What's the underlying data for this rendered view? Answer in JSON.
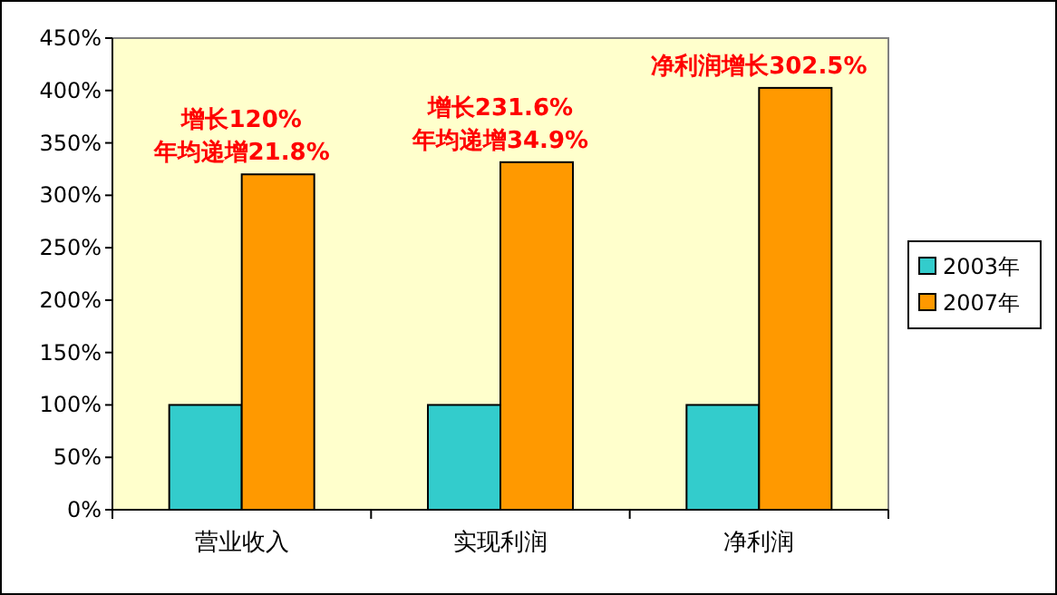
{
  "chart_data": {
    "type": "bar",
    "categories": [
      "营业收入",
      "实现利润",
      "净利润"
    ],
    "series": [
      {
        "name": "2003年",
        "color": "#33cccc",
        "values": [
          100,
          100,
          100
        ]
      },
      {
        "name": "2007年",
        "color": "#ff9900",
        "values": [
          320,
          331.6,
          402.5
        ]
      }
    ],
    "ylim": [
      0,
      450
    ],
    "yticks": [
      {
        "value": 0,
        "label": "0%"
      },
      {
        "value": 50,
        "label": "50%"
      },
      {
        "value": 100,
        "label": "100%"
      },
      {
        "value": 150,
        "label": "150%"
      },
      {
        "value": 200,
        "label": "200%"
      },
      {
        "value": 250,
        "label": "250%"
      },
      {
        "value": 300,
        "label": "300%"
      },
      {
        "value": 350,
        "label": "350%"
      },
      {
        "value": 400,
        "label": "400%"
      },
      {
        "value": 450,
        "label": "450%"
      }
    ],
    "legend": "right",
    "grid": false,
    "annotations": [
      {
        "text": "增长120%",
        "x": "营业收入",
        "y": 320
      },
      {
        "text": "年均递增21.8%",
        "x": "营业收入",
        "y": 320
      },
      {
        "text": "增长231.6%",
        "x": "实现利润",
        "y": 331.6
      },
      {
        "text": "年均递增34.9%",
        "x": "实现利润",
        "y": 331.6
      },
      {
        "text": "净利润增长302.5%",
        "x": "净利润",
        "y": 402.5
      }
    ]
  }
}
